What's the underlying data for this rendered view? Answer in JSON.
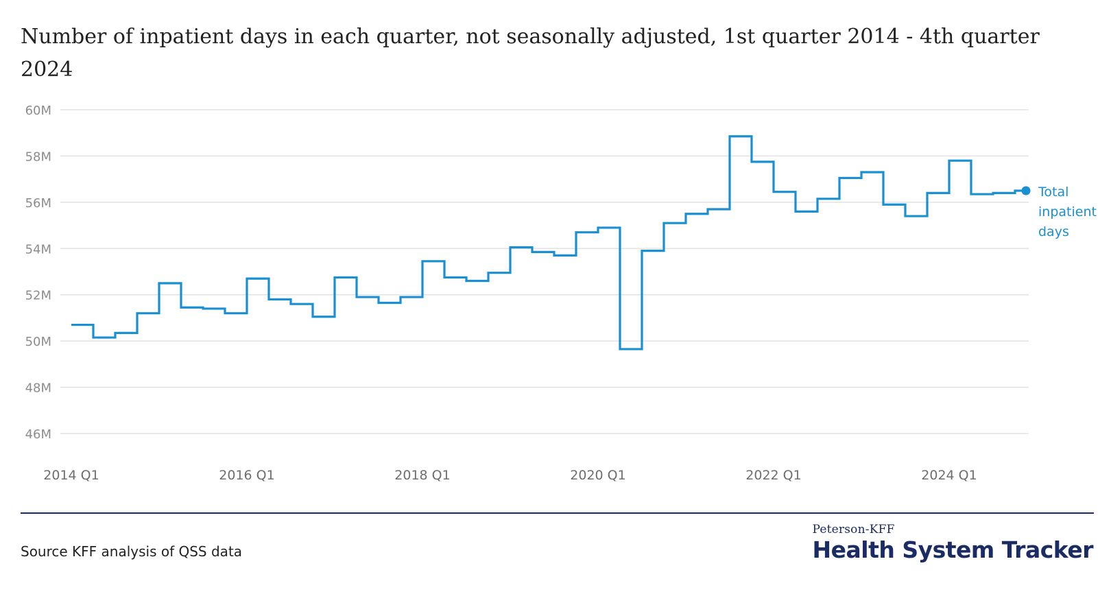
{
  "title": "Number of inpatient days in each quarter, not seasonally adjusted, 1st quarter 2014 - 4th quarter 2024",
  "source": "Source KFF analysis of QSS data",
  "brand": {
    "top": "Peterson-KFF",
    "main": "Health System Tracker"
  },
  "colors": {
    "line": "#1a8fd1",
    "grid": "#e3e3e3",
    "divider": "#1b2b63",
    "brand": "#1b2b63"
  },
  "chart_data": {
    "type": "line",
    "step": true,
    "x": [
      "2014 Q1",
      "2014 Q2",
      "2014 Q3",
      "2014 Q4",
      "2015 Q1",
      "2015 Q2",
      "2015 Q3",
      "2015 Q4",
      "2016 Q1",
      "2016 Q2",
      "2016 Q3",
      "2016 Q4",
      "2017 Q1",
      "2017 Q2",
      "2017 Q3",
      "2017 Q4",
      "2018 Q1",
      "2018 Q2",
      "2018 Q3",
      "2018 Q4",
      "2019 Q1",
      "2019 Q2",
      "2019 Q3",
      "2019 Q4",
      "2020 Q1",
      "2020 Q2",
      "2020 Q3",
      "2020 Q4",
      "2021 Q1",
      "2021 Q2",
      "2021 Q3",
      "2021 Q4",
      "2022 Q1",
      "2022 Q2",
      "2022 Q3",
      "2022 Q4",
      "2023 Q1",
      "2023 Q2",
      "2023 Q3",
      "2023 Q4",
      "2024 Q1",
      "2024 Q2",
      "2024 Q3",
      "2024 Q4"
    ],
    "series": [
      {
        "name": "Total inpatient days",
        "label_lines": [
          "Total",
          "inpatient",
          "days"
        ],
        "values": [
          50.7,
          50.15,
          50.35,
          51.2,
          52.5,
          51.45,
          51.4,
          51.2,
          52.7,
          51.8,
          51.6,
          51.05,
          52.75,
          51.9,
          51.65,
          51.9,
          53.45,
          52.75,
          52.6,
          52.95,
          54.05,
          53.85,
          53.7,
          54.7,
          54.9,
          49.65,
          53.9,
          55.1,
          55.5,
          55.7,
          58.85,
          57.75,
          56.45,
          55.6,
          56.15,
          57.05,
          57.3,
          55.9,
          55.4,
          56.4,
          57.8,
          56.35,
          56.4,
          56.5
        ]
      }
    ],
    "y_ticks": [
      46,
      48,
      50,
      52,
      54,
      56,
      58,
      60
    ],
    "y_tick_labels": [
      "46M",
      "48M",
      "50M",
      "52M",
      "54M",
      "56M",
      "58M",
      "60M"
    ],
    "x_tick_labels": [
      "2014 Q1",
      "2016 Q1",
      "2018 Q1",
      "2020 Q1",
      "2022 Q1",
      "2024 Q1"
    ],
    "ylim": [
      46,
      60
    ],
    "units": "millions of days",
    "xlabel": "",
    "ylabel": "",
    "grid": true,
    "legend": "right end of line"
  }
}
